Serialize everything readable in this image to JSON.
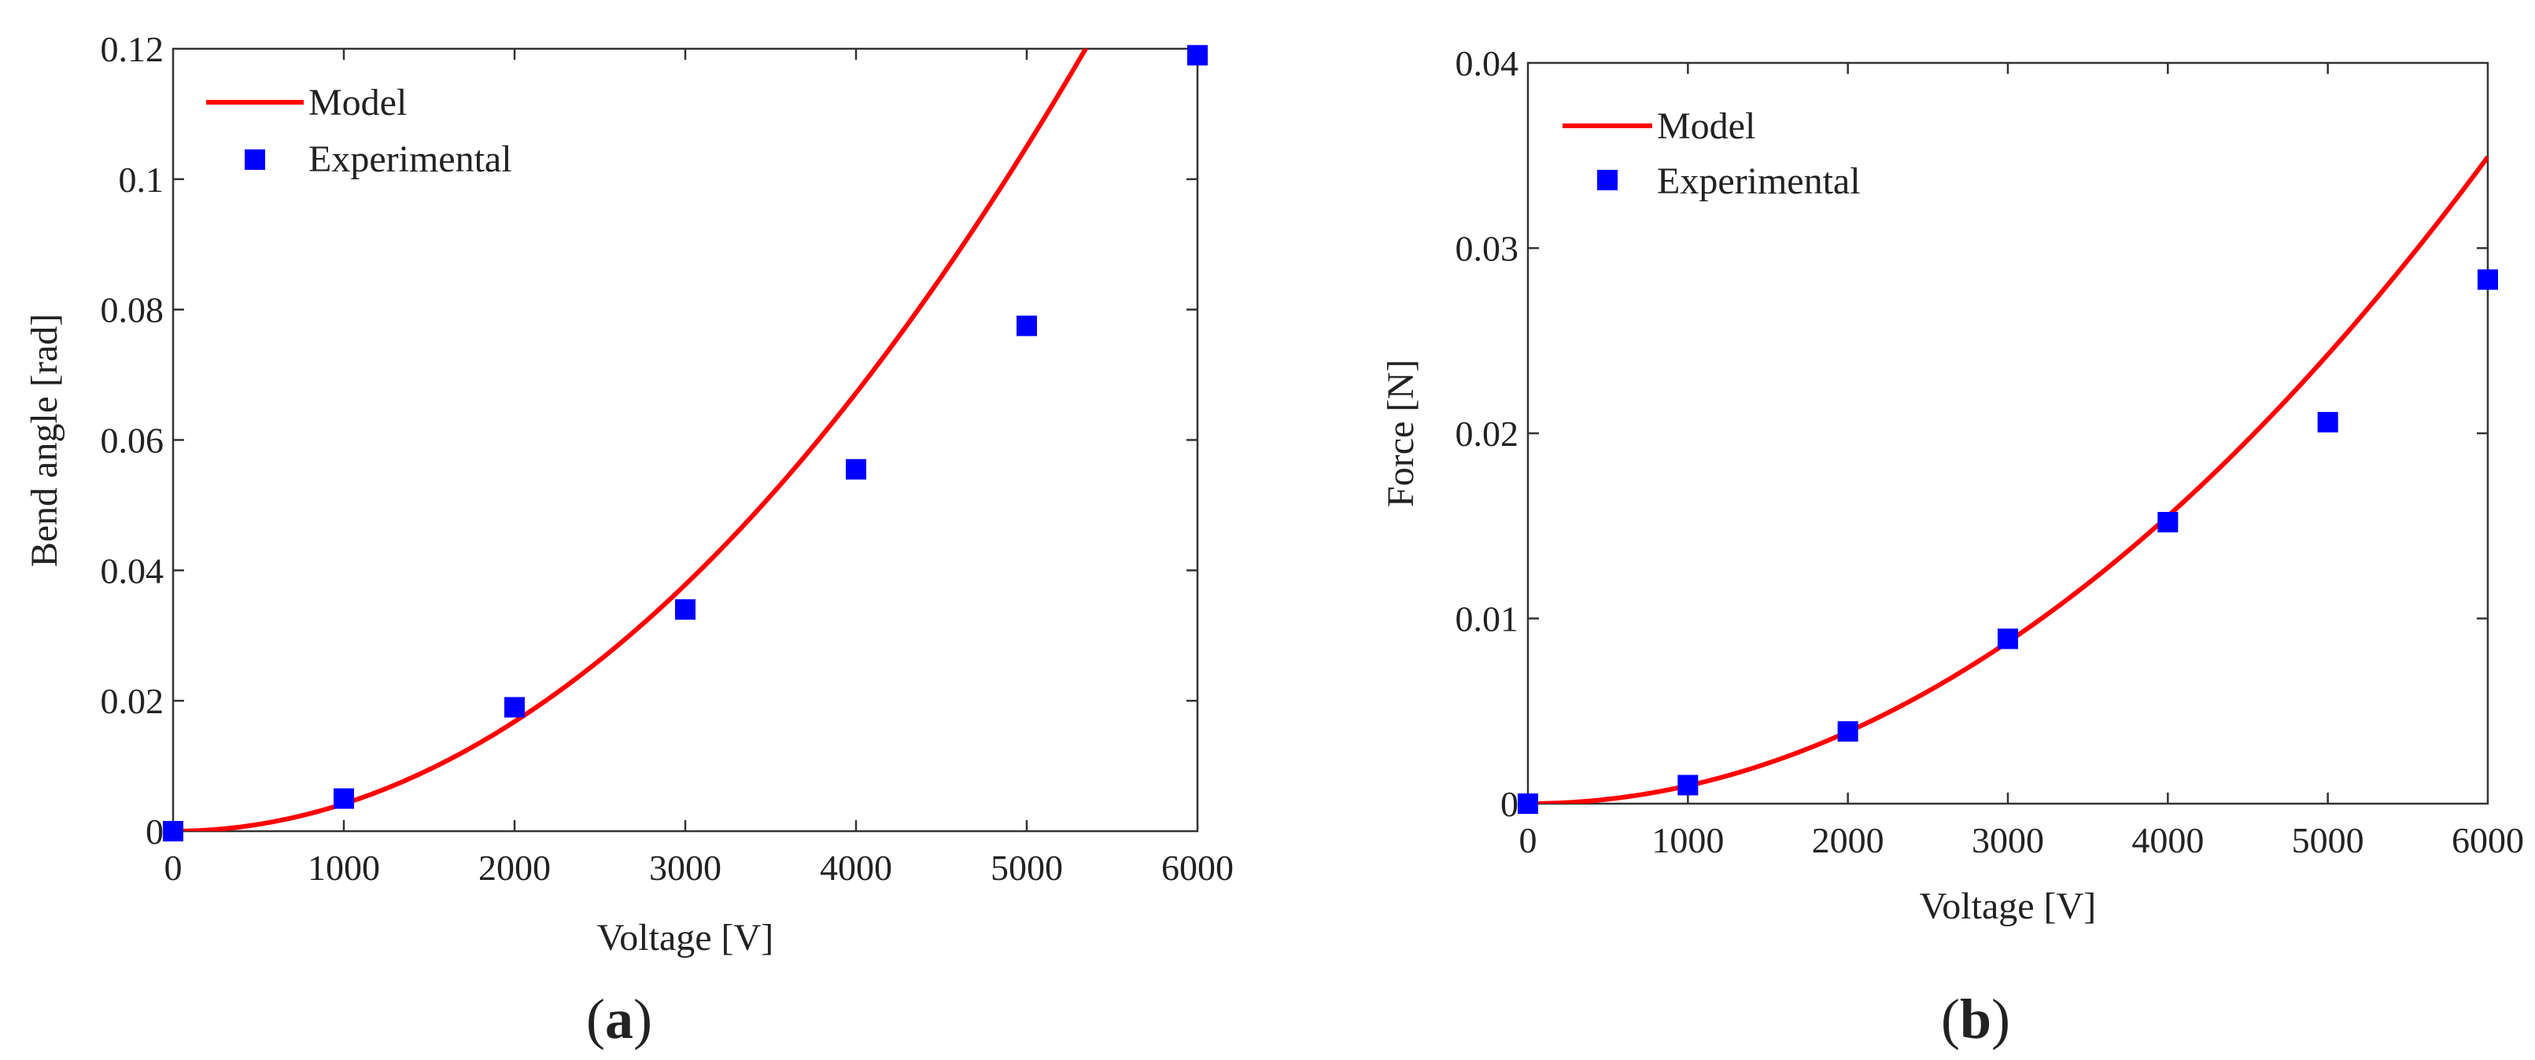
{
  "figure": {
    "panels": [
      "(a)",
      "(b)"
    ],
    "colors": {
      "model": "#ff0000",
      "experimental": "#0000ff",
      "axis": "#333333"
    }
  },
  "chart_data": [
    {
      "id": "a",
      "panel_label": "(a)",
      "panel_letter": "a",
      "type": "line+scatter",
      "title": "",
      "xlabel": "Voltage [V]",
      "ylabel": "Bend angle [rad]",
      "xlim": [
        0,
        6000
      ],
      "ylim": [
        0,
        0.12
      ],
      "xticks": [
        0,
        1000,
        2000,
        3000,
        4000,
        5000,
        6000
      ],
      "xtick_labels": [
        "0",
        "1000",
        "2000",
        "3000",
        "4000",
        "5000",
        "6000"
      ],
      "yticks": [
        0,
        0.02,
        0.04,
        0.06,
        0.08,
        0.1,
        0.12
      ],
      "ytick_labels": [
        "0",
        "0.02",
        "0.04",
        "0.06",
        "0.08",
        "0.1",
        "0.12"
      ],
      "legend": {
        "placement": "top-left",
        "entries": [
          "Model",
          "Experimental"
        ]
      },
      "series": [
        {
          "name": "Model",
          "kind": "line",
          "color": "#ff0000",
          "model": {
            "form": "a*x^2",
            "a": 4.2e-09
          }
        },
        {
          "name": "Experimental",
          "kind": "scatter",
          "marker": "square",
          "color": "#0000ff",
          "x": [
            0,
            1000,
            2000,
            3000,
            4000,
            5000,
            6000
          ],
          "y": [
            0.0,
            0.005,
            0.019,
            0.034,
            0.0555,
            0.0775,
            0.119
          ]
        }
      ]
    },
    {
      "id": "b",
      "panel_label": "(b)",
      "panel_letter": "b",
      "type": "line+scatter",
      "title": "",
      "xlabel": "Voltage [V]",
      "ylabel": "Force [N]",
      "xlim": [
        0,
        6000
      ],
      "ylim": [
        0,
        0.04
      ],
      "xticks": [
        0,
        1000,
        2000,
        3000,
        4000,
        5000,
        6000
      ],
      "xtick_labels": [
        "0",
        "1000",
        "2000",
        "3000",
        "4000",
        "5000",
        "6000"
      ],
      "yticks": [
        0,
        0.01,
        0.02,
        0.03,
        0.04
      ],
      "ytick_labels": [
        "0",
        "0.01",
        "0.02",
        "0.03",
        "0.04"
      ],
      "legend": {
        "placement": "top-left",
        "entries": [
          "Model",
          "Experimental"
        ]
      },
      "series": [
        {
          "name": "Model",
          "kind": "line",
          "color": "#ff0000",
          "model": {
            "form": "a*x^2",
            "a": 9.7e-10
          }
        },
        {
          "name": "Experimental",
          "kind": "scatter",
          "marker": "square",
          "color": "#0000ff",
          "x": [
            0,
            1000,
            2000,
            3000,
            4000,
            5000,
            6000
          ],
          "y": [
            0.0,
            0.001,
            0.0039,
            0.0089,
            0.0152,
            0.0206,
            0.0283
          ]
        }
      ]
    }
  ]
}
